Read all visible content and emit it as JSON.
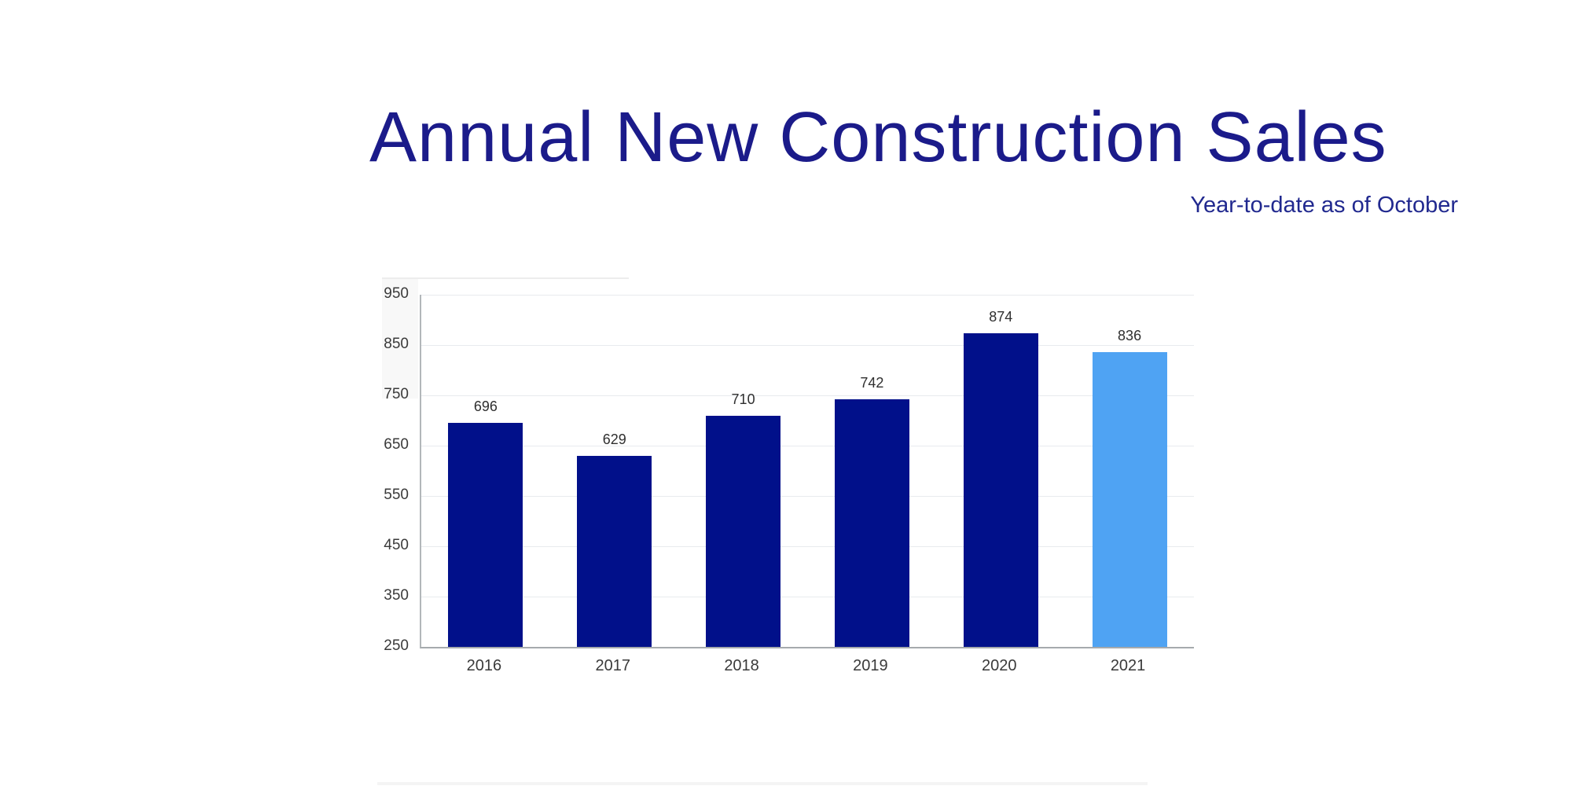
{
  "title": "Annual New Construction Sales",
  "subtitle": "Year-to-date as of October",
  "colors": {
    "title_text": "#1b1b8a",
    "subtitle_text": "#21298f",
    "bar_primary": "#01108a",
    "bar_highlight": "#4fa3f3",
    "gridline": "#e8ebee",
    "axis_line": "#b2b7ba",
    "baseline": "#a6aaad",
    "tick_text": "#3a3a3a",
    "value_text": "#2f2f2f",
    "background": "#ffffff"
  },
  "chart_data": {
    "type": "bar",
    "title": "Annual New Construction Sales",
    "subtitle": "Year-to-date as of October",
    "categories": [
      "2016",
      "2017",
      "2018",
      "2019",
      "2020",
      "2021"
    ],
    "values": [
      696,
      629,
      710,
      742,
      874,
      836
    ],
    "highlighted_category": "2021",
    "highlight_note": "2021 bar shown in light blue (year-to-date), prior years in dark navy",
    "xlabel": "",
    "ylabel": "",
    "ylim": [
      250,
      950
    ],
    "y_ticks": [
      250,
      350,
      450,
      550,
      650,
      750,
      850,
      950
    ],
    "grid": true,
    "legend": false,
    "bar_labels": true
  }
}
